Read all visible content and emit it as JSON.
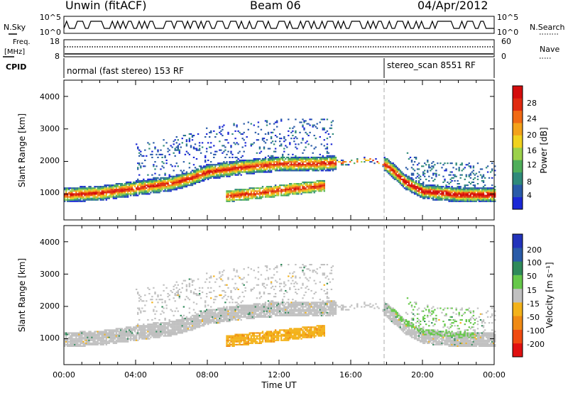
{
  "header": {
    "radar": "Unwin (fitACF)",
    "beam": "Beam 06",
    "date": "04/Apr/2012"
  },
  "top_panels": {
    "nsky_label": "N.Sky",
    "nsky_ticks": [
      "10^5",
      "10^0"
    ],
    "nsearch_label": "N.Search",
    "nsearch_ticks": [
      "10^5",
      "10^0"
    ],
    "freq_label_1": "Freq.",
    "freq_label_2": "[MHz]",
    "freq_ticks": [
      "18",
      "8"
    ],
    "nave_label": "Nave",
    "nave_ticks": [
      "60",
      "0"
    ],
    "cpid_label": "CPID",
    "cpid_mode_1": "normal (fast stereo) 153 RF",
    "cpid_mode_2": "stereo_scan 8551 RF"
  },
  "x_axis": {
    "label": "Time UT",
    "ticks": [
      "00:00",
      "04:00",
      "08:00",
      "12:00",
      "16:00",
      "20:00",
      "00:00"
    ]
  },
  "chart_data": [
    {
      "type": "heatmap",
      "ylabel": "Slant Range [km]",
      "yticks": [
        "1000",
        "2000",
        "3000",
        "4000"
      ],
      "ylim": [
        200,
        4500
      ],
      "xlim": [
        0,
        24
      ],
      "colorbar_label": "Power [dB]",
      "colorbar_ticks": [
        "4",
        "8",
        "12",
        "16",
        "20",
        "24",
        "28"
      ],
      "colors": [
        "#1b28d6",
        "#2a5ba8",
        "#2f8a7a",
        "#4fae5a",
        "#9bd14a",
        "#f0d21e",
        "#f3a21a",
        "#f06a14",
        "#e02a10",
        "#d40c0c"
      ],
      "band_centers": [
        [
          0,
          950
        ],
        [
          2,
          1000
        ],
        [
          4,
          1150
        ],
        [
          6,
          1300
        ],
        [
          7,
          1450
        ],
        [
          8,
          1650
        ],
        [
          10,
          1800
        ],
        [
          12,
          1900
        ],
        [
          14,
          1900
        ],
        [
          16,
          1950
        ],
        [
          17,
          2050
        ],
        [
          18,
          1850
        ],
        [
          19,
          1350
        ],
        [
          20,
          1050
        ],
        [
          22,
          950
        ],
        [
          24,
          950
        ]
      ],
      "secondary_echo": {
        "t_start": 9,
        "t_end": 14.5,
        "range_km": 900
      }
    },
    {
      "type": "heatmap",
      "ylabel": "Slant Range [km]",
      "yticks": [
        "1000",
        "2000",
        "3000",
        "4000"
      ],
      "ylim": [
        200,
        4500
      ],
      "xlim": [
        0,
        24
      ],
      "colorbar_label": "Velocity [m s⁻¹]",
      "colorbar_ticks": [
        "200",
        "100",
        "50",
        "15",
        "-15",
        "-50",
        "-100",
        "-200"
      ],
      "colors": [
        "#2233bb",
        "#2a5ba8",
        "#2f8a5a",
        "#66c84a",
        "#c0c0c0",
        "#f3b21a",
        "#f08a14",
        "#f04a10",
        "#e01010"
      ]
    }
  ]
}
